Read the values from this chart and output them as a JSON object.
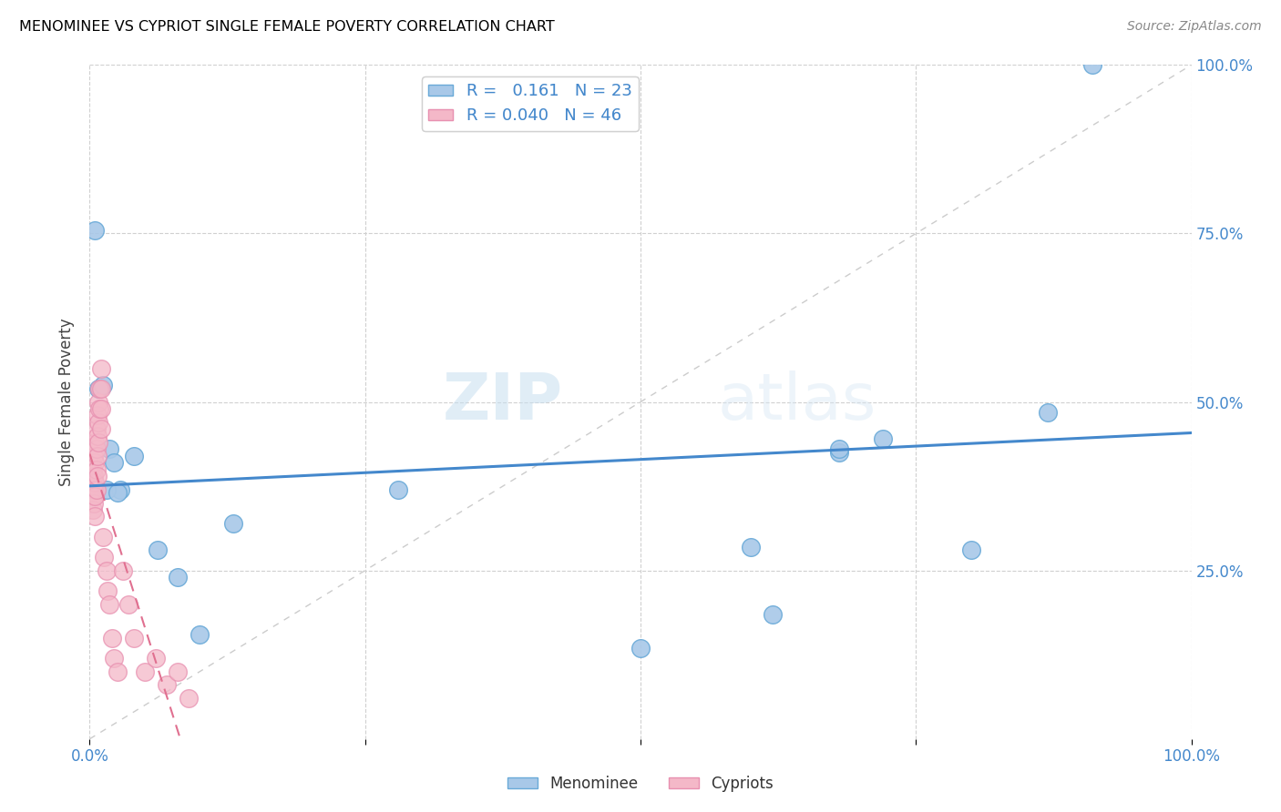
{
  "title": "MENOMINEE VS CYPRIOT SINGLE FEMALE POVERTY CORRELATION CHART",
  "source": "Source: ZipAtlas.com",
  "ylabel": "Single Female Poverty",
  "xlim": [
    0.0,
    1.0
  ],
  "ylim": [
    0.0,
    1.0
  ],
  "xtick_positions": [
    0.0,
    1.0
  ],
  "xtick_labels": [
    "0.0%",
    "100.0%"
  ],
  "ytick_positions": [
    0.25,
    0.5,
    0.75,
    1.0
  ],
  "ytick_labels": [
    "25.0%",
    "50.0%",
    "75.0%",
    "100.0%"
  ],
  "menominee_color": "#a8c8e8",
  "cypriot_color": "#f4b8c8",
  "menominee_edge": "#6aaad8",
  "cypriot_edge": "#e890b0",
  "trend_menominee_color": "#4488cc",
  "trend_cypriot_color": "#e07090",
  "diagonal_color": "#cccccc",
  "R_menominee": 0.161,
  "N_menominee": 23,
  "R_cypriot": 0.04,
  "N_cypriot": 46,
  "menominee_x": [
    0.005,
    0.008,
    0.012,
    0.018,
    0.022,
    0.028,
    0.04,
    0.062,
    0.08,
    0.1,
    0.13,
    0.6,
    0.62,
    0.68,
    0.72,
    0.8,
    0.87,
    0.91,
    0.015,
    0.025,
    0.28,
    0.5,
    0.68
  ],
  "menominee_y": [
    0.755,
    0.52,
    0.525,
    0.43,
    0.41,
    0.37,
    0.42,
    0.28,
    0.24,
    0.155,
    0.32,
    0.285,
    0.185,
    0.425,
    0.445,
    0.28,
    0.485,
    1.0,
    0.37,
    0.365,
    0.37,
    0.135,
    0.43
  ],
  "cypriot_x": [
    0.002,
    0.003,
    0.003,
    0.003,
    0.004,
    0.004,
    0.004,
    0.004,
    0.005,
    0.005,
    0.005,
    0.005,
    0.005,
    0.006,
    0.006,
    0.006,
    0.006,
    0.007,
    0.007,
    0.007,
    0.007,
    0.008,
    0.008,
    0.008,
    0.009,
    0.009,
    0.01,
    0.01,
    0.01,
    0.01,
    0.012,
    0.013,
    0.015,
    0.016,
    0.018,
    0.02,
    0.022,
    0.025,
    0.03,
    0.035,
    0.04,
    0.05,
    0.06,
    0.07,
    0.08,
    0.09
  ],
  "cypriot_y": [
    0.38,
    0.4,
    0.36,
    0.34,
    0.42,
    0.39,
    0.37,
    0.35,
    0.44,
    0.41,
    0.38,
    0.36,
    0.33,
    0.46,
    0.43,
    0.4,
    0.37,
    0.48,
    0.45,
    0.42,
    0.39,
    0.5,
    0.47,
    0.44,
    0.52,
    0.49,
    0.55,
    0.52,
    0.49,
    0.46,
    0.3,
    0.27,
    0.25,
    0.22,
    0.2,
    0.15,
    0.12,
    0.1,
    0.25,
    0.2,
    0.15,
    0.1,
    0.12,
    0.08,
    0.1,
    0.06
  ],
  "watermark_zip": "ZIP",
  "watermark_atlas": "atlas",
  "legend_label_menominee": "Menominee",
  "legend_label_cypriot": "Cypriots",
  "background_color": "#ffffff",
  "grid_color": "#d0d0d0",
  "tick_color": "#4488cc",
  "legend_text_color": "#4488cc"
}
